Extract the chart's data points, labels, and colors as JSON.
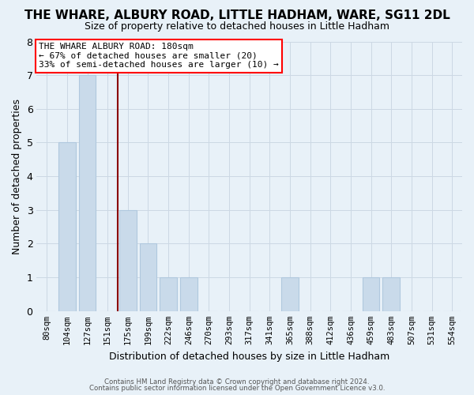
{
  "title": "THE WHARE, ALBURY ROAD, LITTLE HADHAM, WARE, SG11 2DL",
  "subtitle": "Size of property relative to detached houses in Little Hadham",
  "xlabel": "Distribution of detached houses by size in Little Hadham",
  "ylabel": "Number of detached properties",
  "footer_line1": "Contains HM Land Registry data © Crown copyright and database right 2024.",
  "footer_line2": "Contains public sector information licensed under the Open Government Licence v3.0.",
  "bin_labels": [
    "80sqm",
    "104sqm",
    "127sqm",
    "151sqm",
    "175sqm",
    "199sqm",
    "222sqm",
    "246sqm",
    "270sqm",
    "293sqm",
    "317sqm",
    "341sqm",
    "365sqm",
    "388sqm",
    "412sqm",
    "436sqm",
    "459sqm",
    "483sqm",
    "507sqm",
    "531sqm",
    "554sqm"
  ],
  "bar_values": [
    0,
    5,
    7,
    0,
    3,
    2,
    1,
    1,
    0,
    0,
    0,
    0,
    1,
    0,
    0,
    0,
    1,
    1,
    0,
    0,
    0
  ],
  "bar_color": "#c9daea",
  "bar_edge_color": "#b0c8de",
  "red_line_index": 4,
  "ylim": [
    0,
    8
  ],
  "yticks": [
    0,
    1,
    2,
    3,
    4,
    5,
    6,
    7,
    8
  ],
  "annotation_title": "THE WHARE ALBURY ROAD: 180sqm",
  "annotation_line2": "← 67% of detached houses are smaller (20)",
  "annotation_line3": "33% of semi-detached houses are larger (10) →",
  "grid_color": "#ccd8e4",
  "background_color": "#e8f1f8",
  "title_fontsize": 11,
  "subtitle_fontsize": 9
}
